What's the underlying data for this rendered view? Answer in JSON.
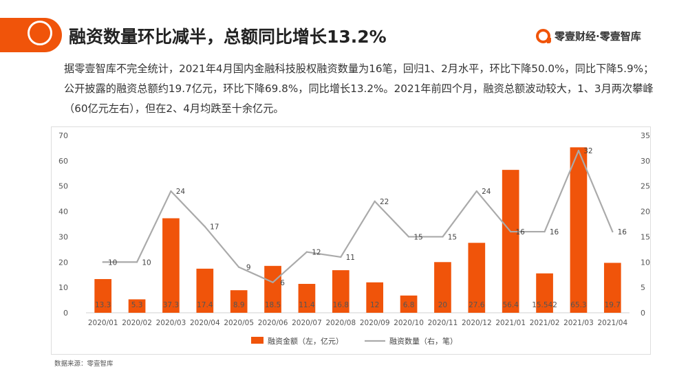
{
  "header": {
    "title": "融资数量环比减半，总额同比增长13.2%",
    "brand": "零壹财经·零壹智库"
  },
  "summary": "据零壹智库不完全统计，2021年4月国内金融科技股权融资数量为16笔，回归1、2月水平，环比下降50.0%，同比下降5.9%；公开披露的融资总额约19.7亿元，环比下降69.8%，同比增长13.2%。2021年前四个月，融资总额波动较大，1、3月两次攀峰（60亿元左右），但在2、4月均跌至十余亿元。",
  "source": "数据来源：零壹智库",
  "colors": {
    "accent": "#f0540a",
    "bar": "#f0540a",
    "line": "#aaaaaa",
    "axis_text": "#555555"
  },
  "chart_data": {
    "type": "bar+line",
    "categories": [
      "2020/01",
      "2020/02",
      "2020/03",
      "2020/04",
      "2020/05",
      "2020/06",
      "2020/07",
      "2020/08",
      "2020/09",
      "2020/10",
      "2020/11",
      "2020/12",
      "2021/01",
      "2021/02",
      "2021/03",
      "2021/04"
    ],
    "series": [
      {
        "name": "融资金额（左，亿元）",
        "type": "bar",
        "axis": "left",
        "values": [
          13.3,
          5.3,
          37.3,
          17.4,
          8.9,
          18.5,
          11.4,
          16.8,
          12,
          6.8,
          20,
          27.6,
          56.4,
          15.542,
          65.3,
          19.7
        ],
        "labels": [
          "13.3",
          "5.3",
          "37.3",
          "17.4",
          "8.9",
          "18.5",
          "11.4",
          "16.8",
          "12",
          "6.8",
          "20",
          "27.6",
          "56.4",
          "15.542",
          "65.3",
          "19.7"
        ]
      },
      {
        "name": "融资数量（右，笔）",
        "type": "line",
        "axis": "right",
        "values": [
          10,
          10,
          24,
          17,
          9,
          6,
          12,
          11,
          22,
          15,
          15,
          24,
          16,
          16,
          32,
          16
        ],
        "labels": [
          "10",
          "10",
          "24",
          "17",
          "9",
          "6",
          "12",
          "11",
          "22",
          "15",
          "15",
          "24",
          "16",
          "16",
          "32",
          "16"
        ]
      }
    ],
    "y_left": {
      "range": [
        0,
        70
      ],
      "ticks": [
        "0",
        "10",
        "20",
        "30",
        "40",
        "50",
        "60",
        "70"
      ]
    },
    "y_right": {
      "range": [
        0,
        35
      ],
      "ticks": [
        "0",
        "5",
        "10",
        "15",
        "20",
        "25",
        "30",
        "35"
      ]
    },
    "grid": false,
    "legend_position": "bottom"
  }
}
